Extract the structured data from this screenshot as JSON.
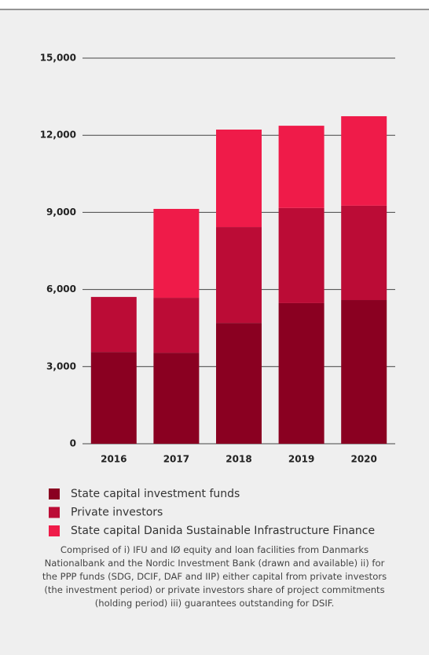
{
  "chart_data": {
    "type": "stacked_bar",
    "categories": [
      "2016",
      "2017",
      "2018",
      "2019",
      "2020"
    ],
    "series": [
      {
        "name": "State capital investment funds",
        "color": "#8a0021",
        "values": [
          3570,
          3540,
          4700,
          5470,
          5590
        ]
      },
      {
        "name": "Private investors",
        "color": "#bb0c36",
        "values": [
          2140,
          2140,
          3730,
          3700,
          3670
        ]
      },
      {
        "name": "State capital Danida Sustainable Infrastructure Finance",
        "color": "#ef1b49",
        "values": [
          0,
          3455,
          3790,
          3200,
          3480
        ]
      }
    ],
    "ylim": [
      0,
      15000
    ],
    "yticks": [
      0,
      {
        "value": 3000,
        "label": "3,000"
      },
      {
        "value": 6000,
        "label": "6,000"
      },
      {
        "value": 9000,
        "label": "9,000"
      },
      {
        "value": 12000,
        "label": "12,000"
      },
      {
        "value": 15000,
        "label": "15,000"
      }
    ],
    "grid": true,
    "note": "Comprised of i) IFU and IØ equity and loan facilities from Danmarks Nationalbank and the Nordic Investment Bank (drawn and available) ii) for the PPP funds (SDG, DCIF, DAF and IIP) either capital from private investors (the investment period) or private investors share of project commitments (holding period) iii) guarantees outstanding for DSIF."
  }
}
